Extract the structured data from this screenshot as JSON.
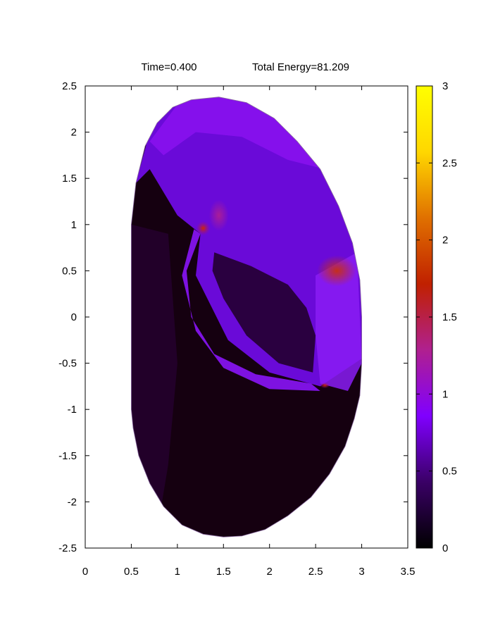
{
  "chart_data": {
    "type": "heatmap",
    "title_parts": [
      "Time=0.400",
      "Total Energy=81.209"
    ],
    "xlim": [
      0,
      3.5
    ],
    "ylim": [
      -2.5,
      2.5
    ],
    "x_ticks": [
      "0",
      "0.5",
      "1",
      "1.5",
      "2",
      "2.5",
      "3",
      "3.5"
    ],
    "y_ticks": [
      "2.5",
      "2",
      "1.5",
      "1",
      "0.5",
      "0",
      "-0.5",
      "-1",
      "-1.5",
      "-2",
      "-2.5"
    ],
    "colorbar": {
      "range": [
        0,
        3
      ],
      "ticks": [
        "3",
        "2.5",
        "2",
        "1.5",
        "1",
        "0.5",
        "0"
      ],
      "colormap": [
        "#000000",
        "#3a0066",
        "#8000ff",
        "#b0208f",
        "#c02000",
        "#e07000",
        "#ffd700",
        "#ffff00"
      ]
    },
    "boundary": {
      "x": [
        0.5,
        0.5,
        0.55,
        0.65,
        0.78,
        0.95,
        1.15,
        1.45,
        1.75,
        2.05,
        2.3,
        2.55,
        2.75,
        2.9,
        2.98,
        3.0,
        3.0,
        2.98,
        2.92,
        2.82,
        2.65,
        2.45,
        2.2,
        1.95,
        1.7,
        1.5,
        1.28,
        1.05,
        0.85,
        0.7,
        0.58,
        0.52,
        0.5
      ],
      "y": [
        -1.0,
        1.0,
        1.45,
        1.85,
        2.1,
        2.27,
        2.35,
        2.38,
        2.32,
        2.15,
        1.9,
        1.6,
        1.2,
        0.8,
        0.4,
        0.0,
        -0.5,
        -0.85,
        -1.1,
        -1.4,
        -1.7,
        -1.95,
        -2.15,
        -2.3,
        -2.37,
        -2.38,
        -2.35,
        -2.25,
        -2.05,
        -1.8,
        -1.5,
        -1.2,
        -1.0
      ]
    },
    "legend": "right colorbar",
    "grid": false
  }
}
